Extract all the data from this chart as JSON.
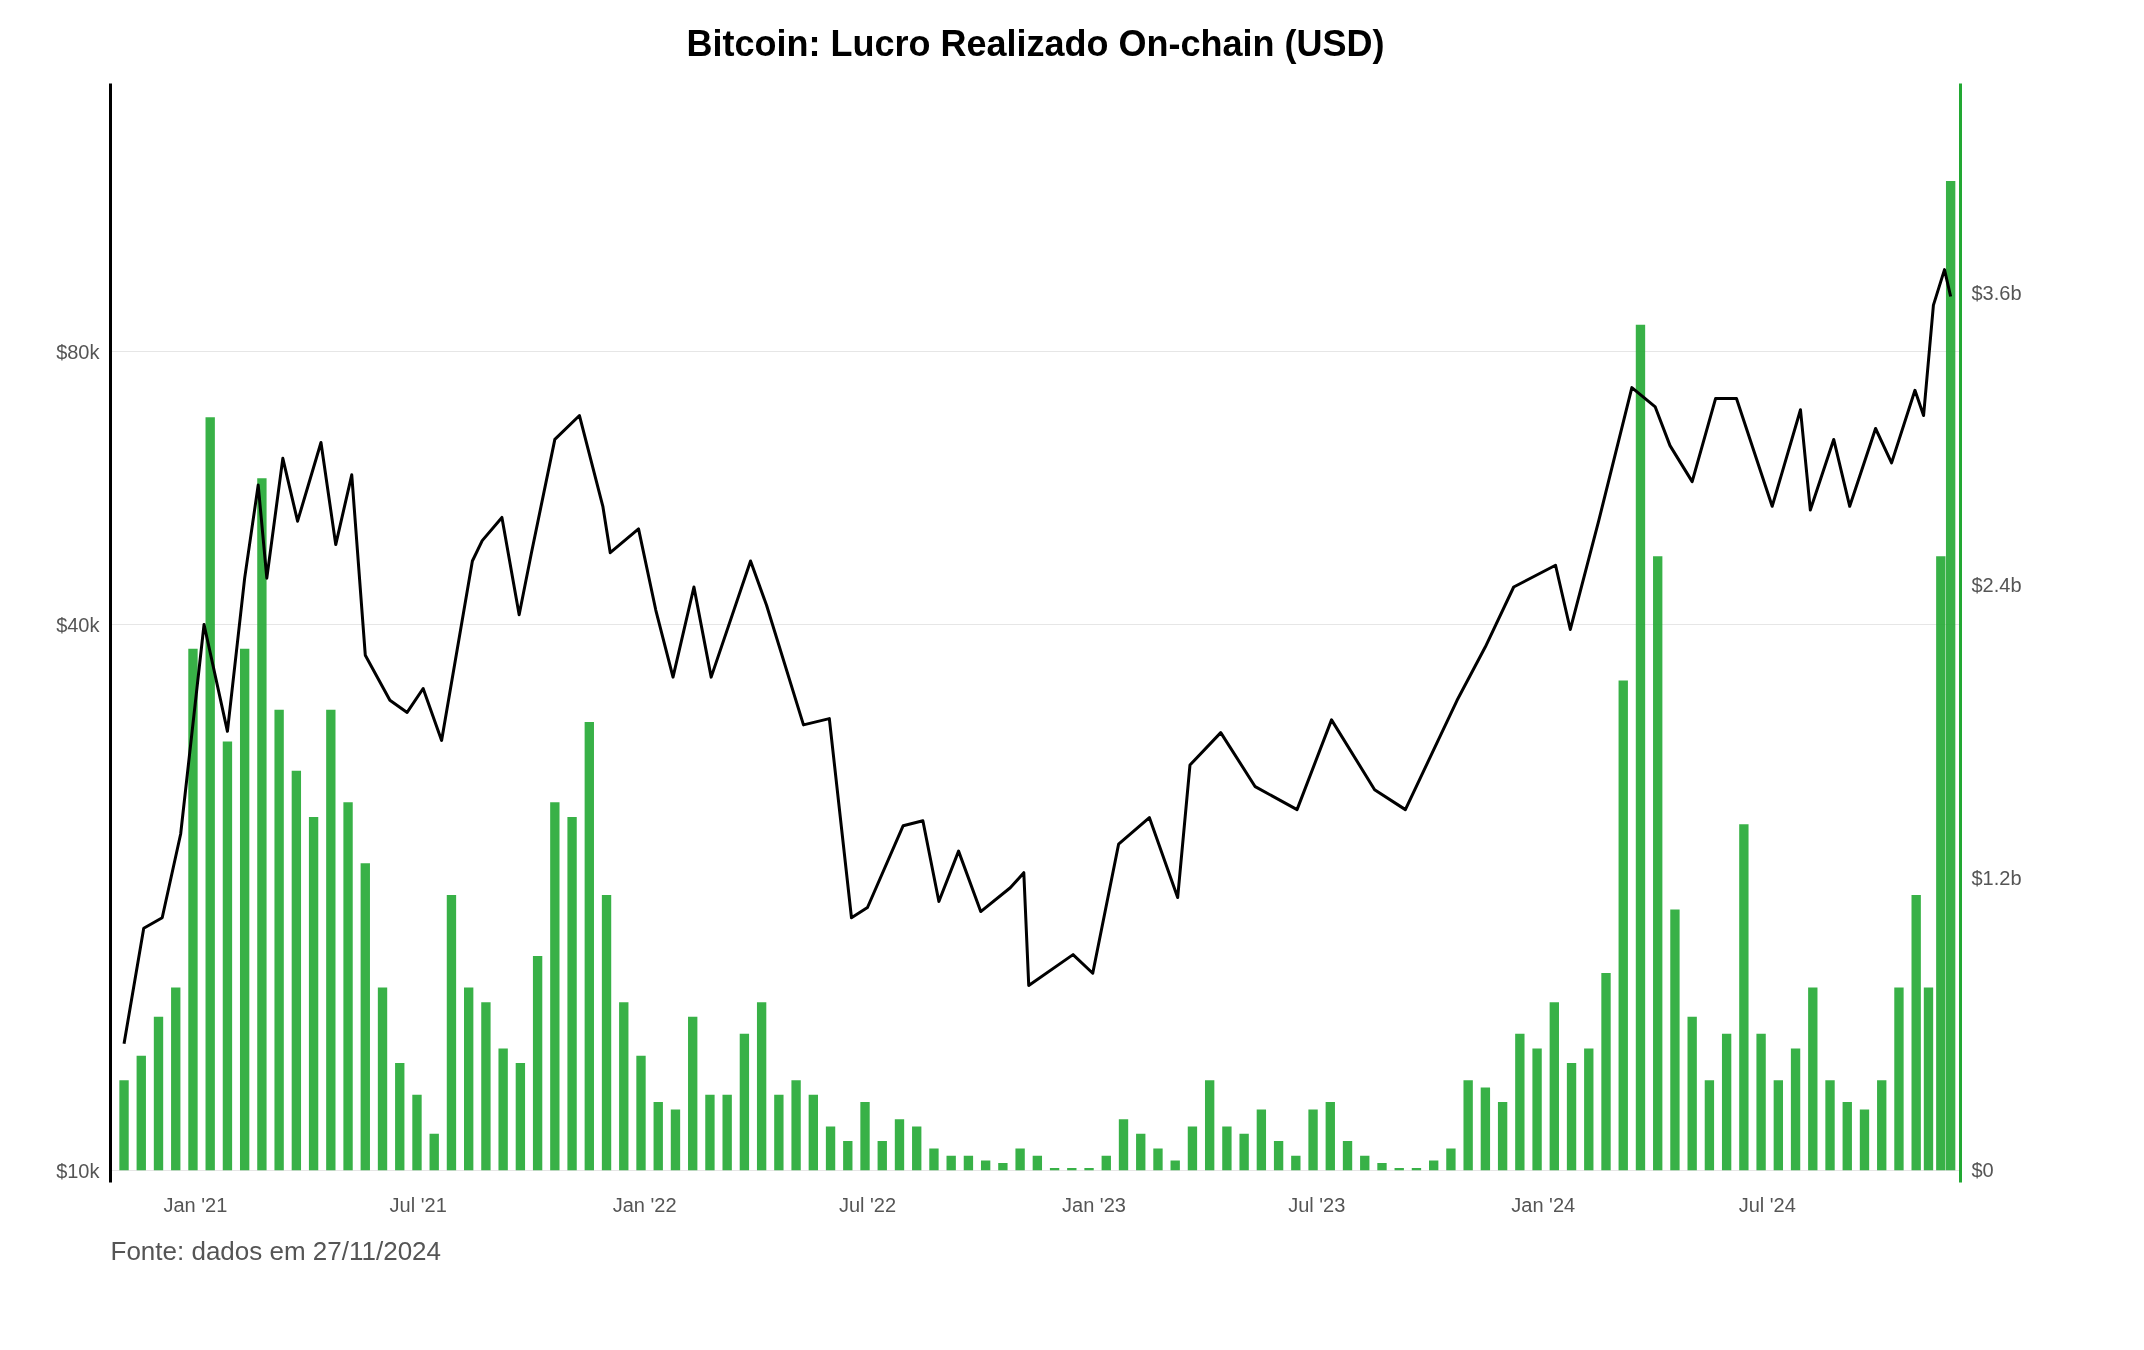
{
  "chart_data": {
    "type": "bar",
    "title": "Bitcoin: Lucro Realizado On-chain (USD)",
    "annotations": [
      "Fonte: dados em 27/11/2024"
    ],
    "log": "y",
    "grid": "y",
    "xlim": [
      "2020-10-24",
      "2024-12-05"
    ],
    "xticks": [
      {
        "value": "2021-01-01",
        "label": "Jan '21"
      },
      {
        "value": "2021-07-01",
        "label": "Jul '21"
      },
      {
        "value": "2022-01-01",
        "label": "Jan '22"
      },
      {
        "value": "2022-07-01",
        "label": "Jul '22"
      },
      {
        "value": "2023-01-01",
        "label": "Jan '23"
      },
      {
        "value": "2023-07-01",
        "label": "Jul '23"
      },
      {
        "value": "2024-01-01",
        "label": "Jan '24"
      },
      {
        "value": "2024-07-01",
        "label": "Jul '24"
      }
    ],
    "ylim": [
      9700,
      158000
    ],
    "yticks": [
      {
        "value": 10000,
        "label": "$10k"
      },
      {
        "value": 40000,
        "label": "$40k"
      },
      {
        "value": 80000,
        "label": "$80k"
      }
    ],
    "y2lim": [
      -0.05,
      4.46
    ],
    "y2ticks": [
      {
        "value": 0,
        "label": "$0"
      },
      {
        "value": 1.2,
        "label": "$1.2b"
      },
      {
        "value": 2.4,
        "label": "$2.4b"
      },
      {
        "value": 3.6,
        "label": "$3.6b"
      }
    ],
    "series": [
      {
        "axis": "y2",
        "color": "#22a833",
        "x": [
          "2020-11-04",
          "2020-11-18",
          "2020-12-02",
          "2020-12-16",
          "2020-12-30",
          "2021-01-13",
          "2021-01-27",
          "2021-02-10",
          "2021-02-24",
          "2021-03-10",
          "2021-03-24",
          "2021-04-07",
          "2021-04-21",
          "2021-05-05",
          "2021-05-19",
          "2021-06-02",
          "2021-06-16",
          "2021-06-30",
          "2021-07-14",
          "2021-07-28",
          "2021-08-11",
          "2021-08-25",
          "2021-09-08",
          "2021-09-22",
          "2021-10-06",
          "2021-10-20",
          "2021-11-03",
          "2021-11-17",
          "2021-12-01",
          "2021-12-15",
          "2021-12-29",
          "2022-01-12",
          "2022-01-26",
          "2022-02-09",
          "2022-02-23",
          "2022-03-09",
          "2022-03-23",
          "2022-04-06",
          "2022-04-20",
          "2022-05-04",
          "2022-05-18",
          "2022-06-01",
          "2022-06-15",
          "2022-06-29",
          "2022-07-13",
          "2022-07-27",
          "2022-08-10",
          "2022-08-24",
          "2022-09-07",
          "2022-09-21",
          "2022-10-05",
          "2022-10-19",
          "2022-11-02",
          "2022-11-16",
          "2022-11-30",
          "2022-12-14",
          "2022-12-28",
          "2023-01-11",
          "2023-01-25",
          "2023-02-08",
          "2023-02-22",
          "2023-03-08",
          "2023-03-22",
          "2023-04-05",
          "2023-04-19",
          "2023-05-03",
          "2023-05-17",
          "2023-05-31",
          "2023-06-14",
          "2023-06-28",
          "2023-07-12",
          "2023-07-26",
          "2023-08-09",
          "2023-08-23",
          "2023-09-06",
          "2023-09-20",
          "2023-10-04",
          "2023-10-18",
          "2023-11-01",
          "2023-11-15",
          "2023-11-29",
          "2023-12-13",
          "2023-12-27",
          "2024-01-10",
          "2024-01-24",
          "2024-02-07",
          "2024-02-21",
          "2024-03-06",
          "2024-03-20",
          "2024-04-03",
          "2024-04-17",
          "2024-05-01",
          "2024-05-15",
          "2024-05-29",
          "2024-06-12",
          "2024-06-26",
          "2024-07-10",
          "2024-07-24",
          "2024-08-07",
          "2024-08-21",
          "2024-09-04",
          "2024-09-18",
          "2024-10-02",
          "2024-10-16",
          "2024-10-30",
          "2024-11-09",
          "2024-11-19",
          "2024-11-27"
        ],
        "values": [
          0.37,
          0.47,
          0.63,
          0.75,
          2.14,
          3.09,
          1.76,
          2.14,
          2.84,
          1.89,
          1.64,
          1.45,
          1.89,
          1.51,
          1.26,
          0.75,
          0.44,
          0.31,
          0.15,
          1.13,
          0.75,
          0.69,
          0.5,
          0.44,
          0.88,
          1.51,
          1.45,
          1.84,
          1.13,
          0.69,
          0.47,
          0.28,
          0.25,
          0.63,
          0.31,
          0.31,
          0.56,
          0.69,
          0.31,
          0.37,
          0.31,
          0.18,
          0.12,
          0.28,
          0.12,
          0.21,
          0.18,
          0.09,
          0.06,
          0.06,
          0.04,
          0.03,
          0.09,
          0.06,
          0.01,
          0.01,
          0.01,
          0.06,
          0.21,
          0.15,
          0.09,
          0.04,
          0.18,
          0.37,
          0.18,
          0.15,
          0.25,
          0.12,
          0.06,
          0.25,
          0.28,
          0.12,
          0.06,
          0.03,
          0.01,
          0.01,
          0.04,
          0.09,
          0.37,
          0.34,
          0.28,
          0.56,
          0.5,
          0.69,
          0.44,
          0.5,
          0.81,
          2.01,
          3.47,
          2.52,
          1.07,
          0.63,
          0.37,
          0.56,
          1.42,
          0.56,
          0.37,
          0.5,
          0.75,
          0.37,
          0.28,
          0.25,
          0.37,
          0.75,
          1.13,
          0.75,
          2.52,
          4.06
        ]
      },
      {
        "type": "line",
        "color": "#000000",
        "x": [
          "2020-11-04",
          "2020-11-20",
          "2020-12-05",
          "2020-12-20",
          "2021-01-08",
          "2021-01-27",
          "2021-02-10",
          "2021-02-21",
          "2021-02-28",
          "2021-03-13",
          "2021-03-25",
          "2021-04-13",
          "2021-04-25",
          "2021-05-08",
          "2021-05-19",
          "2021-06-08",
          "2021-06-22",
          "2021-07-05",
          "2021-07-20",
          "2021-08-14",
          "2021-08-22",
          "2021-09-07",
          "2021-09-21",
          "2021-10-01",
          "2021-10-20",
          "2021-11-09",
          "2021-11-28",
          "2021-12-04",
          "2021-12-27",
          "2022-01-10",
          "2022-01-24",
          "2022-02-10",
          "2022-02-24",
          "2022-03-28",
          "2022-04-10",
          "2022-05-10",
          "2022-05-31",
          "2022-06-18",
          "2022-07-01",
          "2022-07-30",
          "2022-08-15",
          "2022-08-28",
          "2022-09-13",
          "2022-10-01",
          "2022-10-25",
          "2022-11-05",
          "2022-11-09",
          "2022-12-15",
          "2022-12-31",
          "2023-01-21",
          "2023-02-15",
          "2023-03-10",
          "2023-03-20",
          "2023-04-14",
          "2023-05-12",
          "2023-06-15",
          "2023-07-13",
          "2023-08-17",
          "2023-09-11",
          "2023-10-23",
          "2023-11-15",
          "2023-12-08",
          "2024-01-11",
          "2024-01-23",
          "2024-02-15",
          "2024-03-13",
          "2024-04-01",
          "2024-04-13",
          "2024-05-01",
          "2024-05-20",
          "2024-06-06",
          "2024-07-05",
          "2024-07-28",
          "2024-08-05",
          "2024-08-24",
          "2024-09-06",
          "2024-09-27",
          "2024-10-10",
          "2024-10-29",
          "2024-11-05",
          "2024-11-13",
          "2024-11-22",
          "2024-11-27"
        ],
        "values": [
          13800,
          18500,
          19000,
          23500,
          40000,
          30500,
          45000,
          57000,
          45000,
          61000,
          52000,
          63500,
          49000,
          58500,
          37000,
          33000,
          32000,
          34000,
          29800,
          47000,
          49500,
          52500,
          41000,
          48000,
          64000,
          68000,
          54000,
          48000,
          51000,
          41500,
          35000,
          44000,
          35000,
          47000,
          42000,
          31000,
          31500,
          19000,
          19500,
          24000,
          24300,
          19800,
          22500,
          19300,
          20500,
          21300,
          16000,
          17300,
          16500,
          22900,
          24500,
          20000,
          28000,
          30400,
          26500,
          25000,
          31400,
          26300,
          25000,
          33000,
          37800,
          44000,
          46500,
          39500,
          52000,
          73000,
          69500,
          63000,
          57500,
          71000,
          71000,
          54000,
          69000,
          53500,
          64000,
          54000,
          65800,
          60300,
          72500,
          68000,
          90000,
          98500,
          92000
        ]
      }
    ]
  }
}
